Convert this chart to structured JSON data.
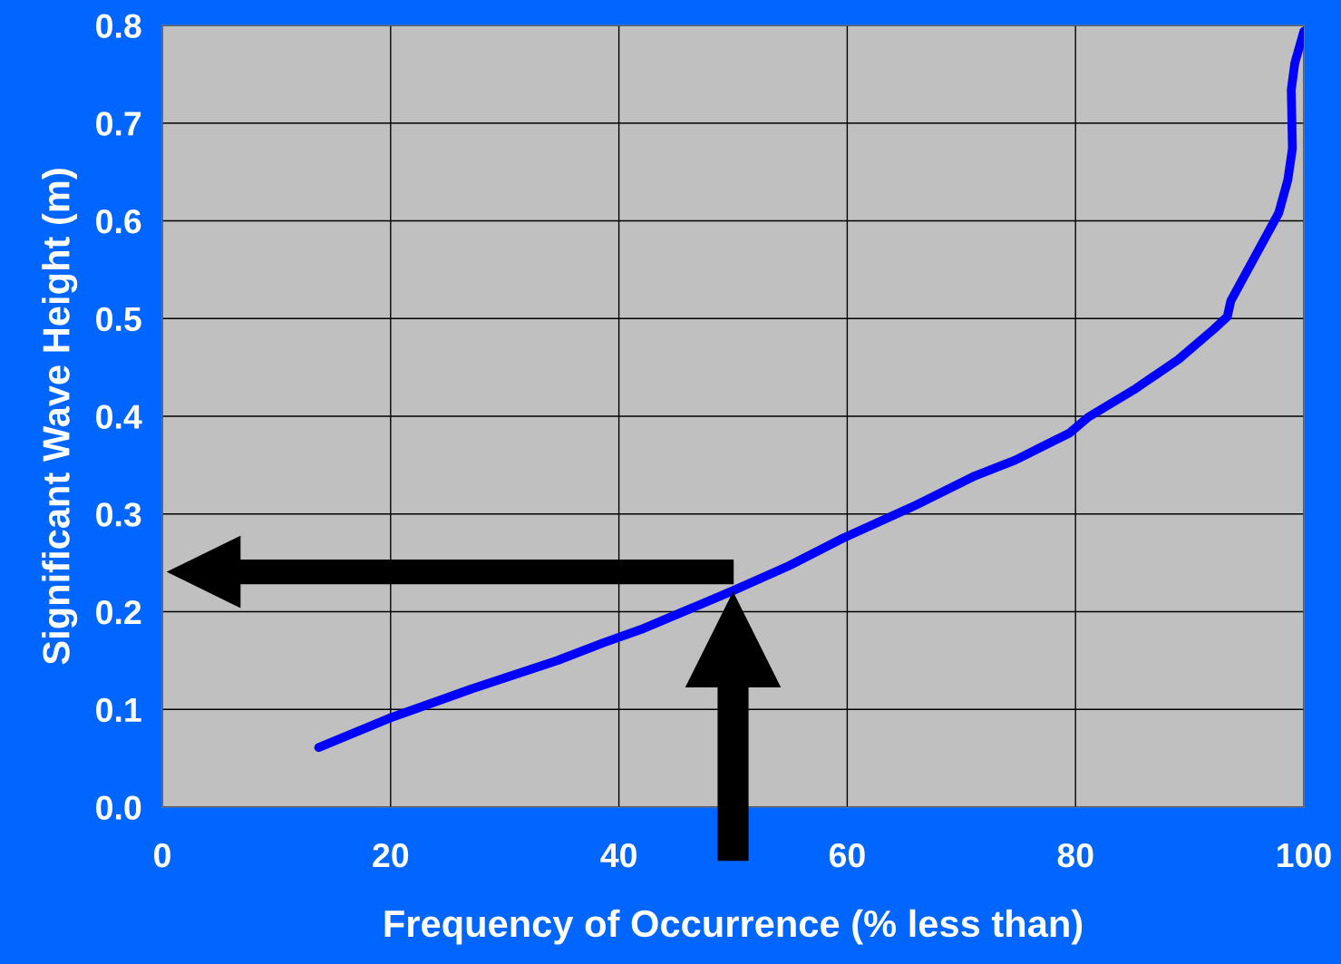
{
  "chart_data": {
    "type": "line",
    "xlabel": "Frequency of Occurrence (% less than)",
    "ylabel": "Significant Wave Height (m)",
    "xlim": [
      0,
      100
    ],
    "xticks": [
      0,
      20,
      40,
      60,
      80,
      100
    ],
    "ylim": [
      0,
      0.8
    ],
    "yticks": [
      {
        "value": 0,
        "label": "0.0"
      },
      0.1,
      0.2,
      0.3,
      0.4,
      0.5,
      0.6,
      0.7,
      0.8
    ],
    "grid": true,
    "marker": "none",
    "line_style": "solid",
    "series": [
      {
        "color": "#0000ff",
        "x": [
          13.7,
          19.9,
          27.1,
          34.6,
          38.6,
          42.2,
          50.1,
          54.9,
          59.6,
          66.0,
          71.2,
          74.7,
          77.1,
          79.5,
          81.1,
          85.1,
          89.0,
          92.1,
          93.3,
          93.6,
          95.0,
          97.8,
          98.6,
          99.0,
          98.9,
          99.2,
          100
        ],
        "values": [
          0.061,
          0.091,
          0.121,
          0.15,
          0.168,
          0.183,
          0.222,
          0.247,
          0.275,
          0.309,
          0.339,
          0.355,
          0.369,
          0.383,
          0.399,
          0.427,
          0.458,
          0.489,
          0.502,
          0.518,
          0.548,
          0.608,
          0.642,
          0.674,
          0.734,
          0.761,
          0.794
        ]
      }
    ]
  }
}
